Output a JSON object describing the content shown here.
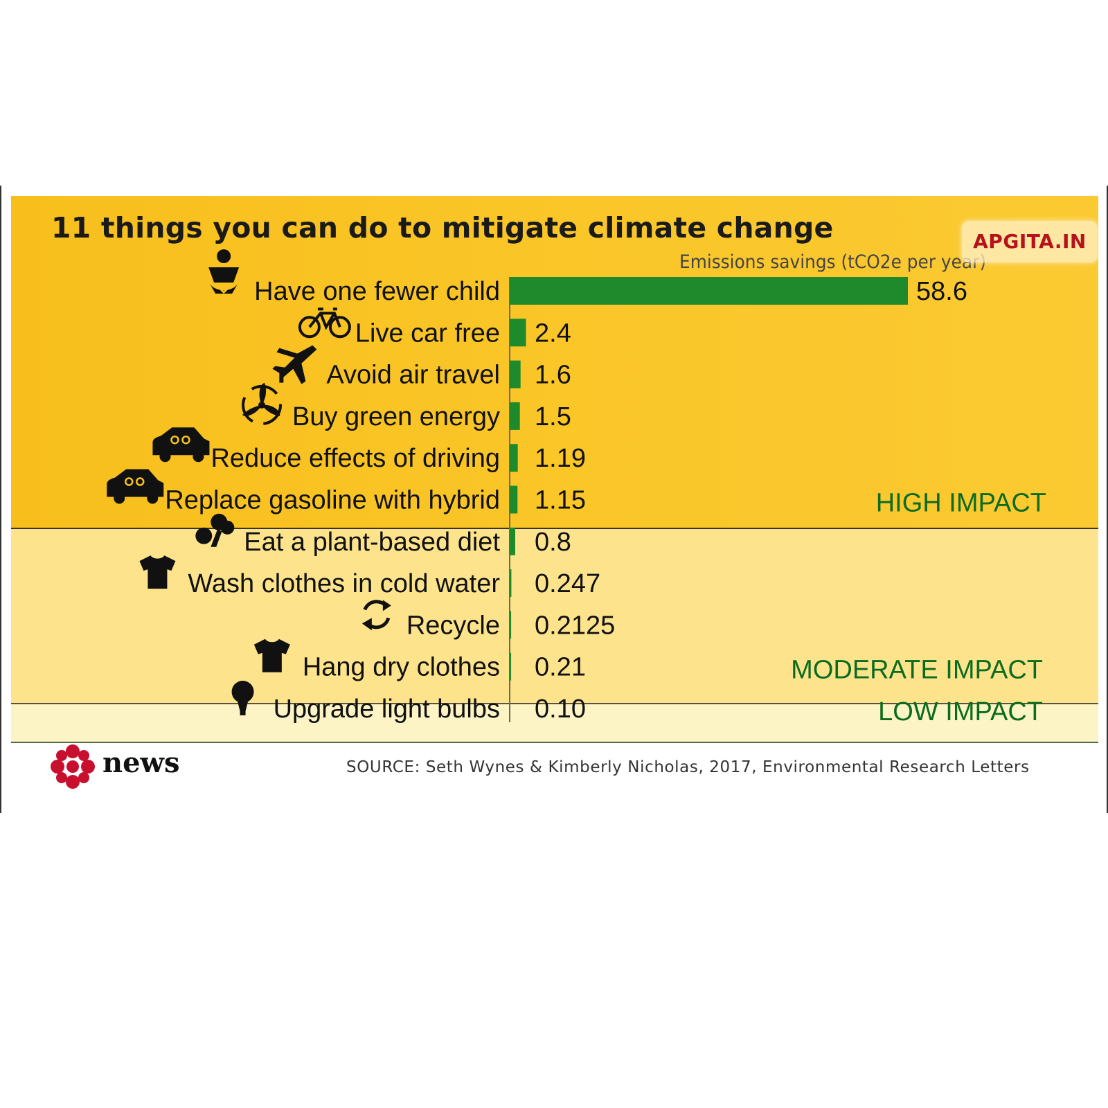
{
  "watermark": "APGITA.IN",
  "footer": {
    "brand": "news",
    "source": "SOURCE: Seth Wynes & Kimberly Nicholas, 2017, Environmental Research Letters"
  },
  "colors": {
    "bar": "#1f8a2c",
    "high_band": "#f9c325",
    "moderate_band": "#fde48c",
    "low_band": "#fdf4c6",
    "impact_text": "#0b6b1e",
    "logo_red": "#c8102e"
  },
  "chart_data": {
    "type": "bar",
    "orientation": "horizontal",
    "title": "11 things you can do to mitigate climate change",
    "xlabel": "Emissions savings (tCO2e per year)",
    "xlim": [
      0,
      58.6
    ],
    "grid": false,
    "categories": [
      "Have one fewer child",
      "Live car free",
      "Avoid air travel",
      "Buy green energy",
      "Reduce effects of driving",
      "Replace gasoline with hybrid",
      "Eat a plant-based diet",
      "Wash clothes in cold water",
      "Recycle",
      "Hang dry clothes",
      "Upgrade light bulbs"
    ],
    "values": [
      58.6,
      2.4,
      1.6,
      1.5,
      1.19,
      1.15,
      0.8,
      0.247,
      0.2125,
      0.21,
      0.1
    ],
    "value_labels": [
      "58.6",
      "2.4",
      "1.6",
      "1.5",
      "1.19",
      "1.15",
      "0.8",
      "0.247",
      "0.2125",
      "0.21",
      "0.10"
    ],
    "icons": [
      "baby-icon",
      "bicycle-icon",
      "airplane-icon",
      "wind-turbine-icon",
      "car-icon",
      "hybrid-car-icon",
      "vegetable-icon",
      "tshirt-icon",
      "recycle-icon",
      "tshirt-icon",
      "light-bulb-icon"
    ],
    "groups": [
      {
        "name": "HIGH IMPACT",
        "count": 6
      },
      {
        "name": "MODERATE IMPACT",
        "count": 4
      },
      {
        "name": "LOW IMPACT",
        "count": 1
      }
    ]
  }
}
